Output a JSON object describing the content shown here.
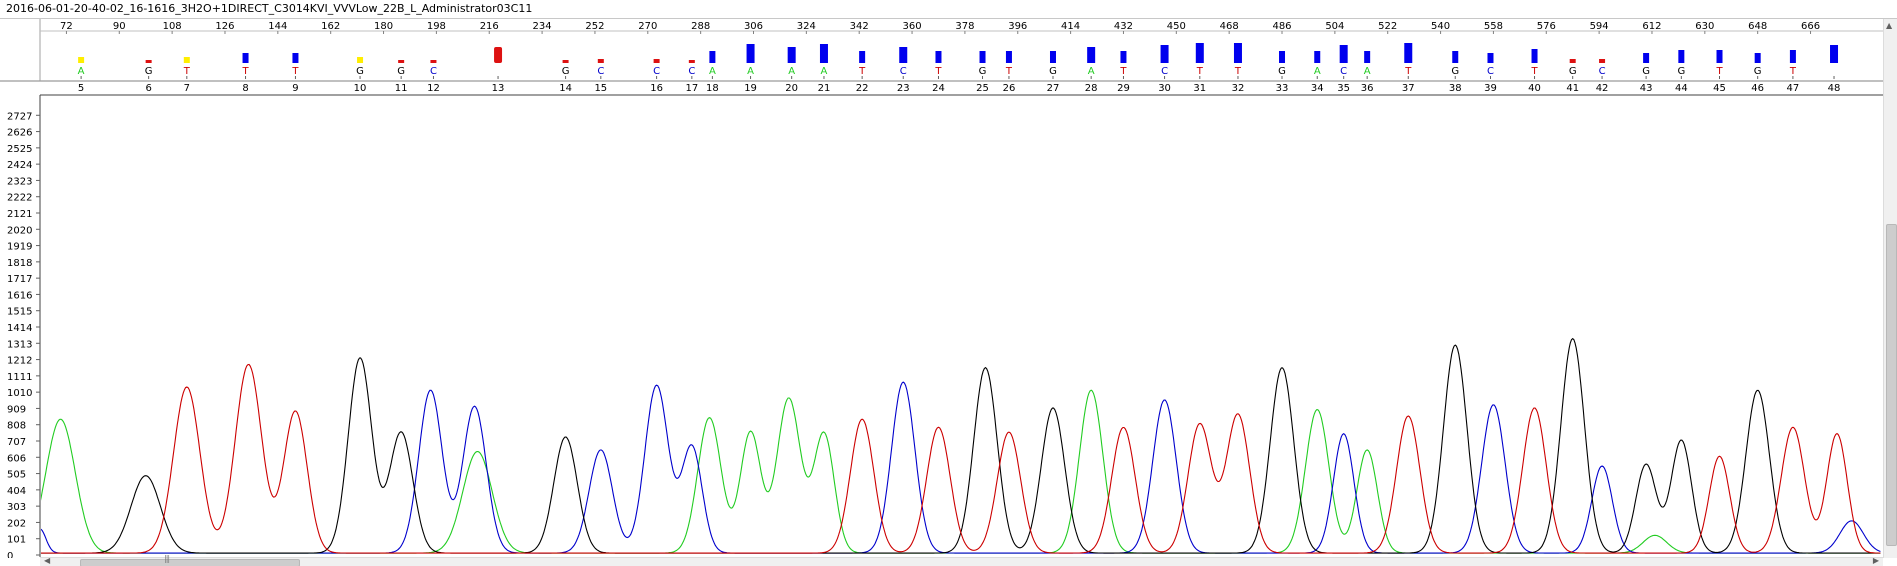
{
  "window": {
    "title": "2016-06-01-20-40-02_16-1616_3H2O+1DIRECT_C3014KVI_VVVLow_22B_L_Administrator03C11"
  },
  "chart_data": {
    "type": "line",
    "title": "",
    "xlabel": "",
    "ylabel": "",
    "x_ticks": [
      72,
      90,
      108,
      126,
      144,
      162,
      180,
      198,
      216,
      234,
      252,
      270,
      288,
      306,
      324,
      342,
      360,
      378,
      396,
      414,
      432,
      450,
      468,
      486,
      504,
      522,
      540,
      558,
      576,
      594,
      612,
      630,
      648,
      666
    ],
    "y_ticks": [
      0,
      101,
      202,
      303,
      404,
      505,
      606,
      707,
      808,
      909,
      1010,
      1111,
      1212,
      1313,
      1414,
      1515,
      1616,
      1717,
      1818,
      1919,
      2020,
      2121,
      2222,
      2323,
      2424,
      2525,
      2626,
      2727
    ],
    "ylim": [
      0,
      2828
    ],
    "xlim": [
      63,
      690
    ],
    "colors": {
      "A": "#22cc22",
      "C": "#0000cc",
      "G": "#000000",
      "T": "#cc0000"
    },
    "qv_colors": {
      "low": "#ffee00",
      "mid": "#dd1111",
      "high": "#0000ee"
    },
    "base_calls": [
      {
        "x": 77,
        "base": "A",
        "num": "5",
        "qv": "low",
        "q": 6
      },
      {
        "x": 100,
        "base": "G",
        "num": "6",
        "qv": "mid",
        "q": 3
      },
      {
        "x": 113,
        "base": "T",
        "num": "7",
        "qv": "low",
        "q": 6
      },
      {
        "x": 133,
        "base": "T",
        "num": "8",
        "qv": "high",
        "q": 10
      },
      {
        "x": 150,
        "base": "T",
        "num": "9",
        "qv": "high",
        "q": 10
      },
      {
        "x": 172,
        "base": "G",
        "num": "10",
        "qv": "low",
        "q": 6
      },
      {
        "x": 186,
        "base": "G",
        "num": "11",
        "qv": "mid",
        "q": 3
      },
      {
        "x": 197,
        "base": "C",
        "num": "12",
        "qv": "mid",
        "q": 3
      },
      {
        "x": 219,
        "base": "",
        "num": "13",
        "qv": "mid",
        "q": 16
      },
      {
        "x": 242,
        "base": "G",
        "num": "14",
        "qv": "mid",
        "q": 3
      },
      {
        "x": 254,
        "base": "C",
        "num": "15",
        "qv": "mid",
        "q": 4
      },
      {
        "x": 273,
        "base": "C",
        "num": "16",
        "qv": "mid",
        "q": 4
      },
      {
        "x": 285,
        "base": "C",
        "num": "17",
        "qv": "mid",
        "q": 3
      },
      {
        "x": 292,
        "base": "A",
        "num": "18",
        "qv": "high",
        "q": 12
      },
      {
        "x": 305,
        "base": "A",
        "num": "19",
        "qv": "high",
        "q": 19
      },
      {
        "x": 319,
        "base": "A",
        "num": "20",
        "qv": "high",
        "q": 16
      },
      {
        "x": 330,
        "base": "A",
        "num": "21",
        "qv": "high",
        "q": 19
      },
      {
        "x": 343,
        "base": "T",
        "num": "22",
        "qv": "high",
        "q": 12
      },
      {
        "x": 357,
        "base": "C",
        "num": "23",
        "qv": "high",
        "q": 16
      },
      {
        "x": 369,
        "base": "T",
        "num": "24",
        "qv": "high",
        "q": 12
      },
      {
        "x": 384,
        "base": "G",
        "num": "25",
        "qv": "high",
        "q": 12
      },
      {
        "x": 393,
        "base": "T",
        "num": "26",
        "qv": "high",
        "q": 12
      },
      {
        "x": 408,
        "base": "G",
        "num": "27",
        "qv": "high",
        "q": 12
      },
      {
        "x": 421,
        "base": "A",
        "num": "28",
        "qv": "high",
        "q": 16
      },
      {
        "x": 432,
        "base": "T",
        "num": "29",
        "qv": "high",
        "q": 12
      },
      {
        "x": 446,
        "base": "C",
        "num": "30",
        "qv": "high",
        "q": 18
      },
      {
        "x": 458,
        "base": "T",
        "num": "31",
        "qv": "high",
        "q": 20
      },
      {
        "x": 471,
        "base": "T",
        "num": "32",
        "qv": "high",
        "q": 20
      },
      {
        "x": 486,
        "base": "G",
        "num": "33",
        "qv": "high",
        "q": 12
      },
      {
        "x": 498,
        "base": "A",
        "num": "34",
        "qv": "high",
        "q": 12
      },
      {
        "x": 507,
        "base": "C",
        "num": "35",
        "qv": "high",
        "q": 18
      },
      {
        "x": 515,
        "base": "A",
        "num": "36",
        "qv": "high",
        "q": 12
      },
      {
        "x": 529,
        "base": "T",
        "num": "37",
        "qv": "high",
        "q": 20
      },
      {
        "x": 545,
        "base": "G",
        "num": "38",
        "qv": "high",
        "q": 12
      },
      {
        "x": 557,
        "base": "C",
        "num": "39",
        "qv": "high",
        "q": 10
      },
      {
        "x": 572,
        "base": "T",
        "num": "40",
        "qv": "high",
        "q": 14
      },
      {
        "x": 585,
        "base": "G",
        "num": "41",
        "qv": "mid",
        "q": 4
      },
      {
        "x": 595,
        "base": "C",
        "num": "42",
        "qv": "mid",
        "q": 4
      },
      {
        "x": 610,
        "base": "G",
        "num": "43",
        "qv": "high",
        "q": 10
      },
      {
        "x": 622,
        "base": "G",
        "num": "44",
        "qv": "high",
        "q": 13
      },
      {
        "x": 635,
        "base": "T",
        "num": "45",
        "qv": "high",
        "q": 13
      },
      {
        "x": 648,
        "base": "G",
        "num": "46",
        "qv": "high",
        "q": 10
      },
      {
        "x": 660,
        "base": "T",
        "num": "47",
        "qv": "high",
        "q": 13
      },
      {
        "x": 674,
        "base": "",
        "num": "48",
        "qv": "high",
        "q": 18
      }
    ],
    "series": [
      {
        "base": "A",
        "peaks": [
          [
            70,
            830,
            5
          ],
          [
            212,
            630,
            5
          ],
          [
            291,
            840,
            4
          ],
          [
            305,
            750,
            3.5
          ],
          [
            318,
            960,
            4
          ],
          [
            330,
            740,
            3.5
          ],
          [
            421,
            1010,
            4
          ],
          [
            498,
            890,
            4
          ],
          [
            515,
            640,
            3.5
          ],
          [
            613,
            110,
            4
          ]
        ]
      },
      {
        "base": "C",
        "peaks": [
          [
            63,
            150,
            2
          ],
          [
            196,
            1010,
            4
          ],
          [
            211,
            910,
            4
          ],
          [
            254,
            640,
            4
          ],
          [
            273,
            1040,
            4
          ],
          [
            285,
            660,
            3.5
          ],
          [
            357,
            1060,
            4
          ],
          [
            446,
            950,
            4
          ],
          [
            507,
            740,
            3.5
          ],
          [
            558,
            920,
            4
          ],
          [
            595,
            540,
            3.5
          ],
          [
            680,
            200,
            4
          ]
        ]
      },
      {
        "base": "G",
        "peaks": [
          [
            99,
            480,
            5
          ],
          [
            172,
            1210,
            4
          ],
          [
            186,
            750,
            4
          ],
          [
            242,
            720,
            4
          ],
          [
            385,
            1150,
            4
          ],
          [
            408,
            900,
            4
          ],
          [
            486,
            1150,
            4
          ],
          [
            545,
            1290,
            4
          ],
          [
            585,
            1330,
            4
          ],
          [
            610,
            550,
            3.5
          ],
          [
            622,
            700,
            3.5
          ],
          [
            648,
            1010,
            4
          ]
        ]
      },
      {
        "base": "T",
        "peaks": [
          [
            113,
            1030,
            4.5
          ],
          [
            134,
            1170,
            4.5
          ],
          [
            150,
            880,
            4
          ],
          [
            343,
            830,
            4
          ],
          [
            369,
            780,
            4
          ],
          [
            393,
            750,
            4
          ],
          [
            432,
            780,
            4
          ],
          [
            458,
            800,
            4
          ],
          [
            471,
            860,
            4
          ],
          [
            529,
            850,
            4
          ],
          [
            572,
            900,
            4
          ],
          [
            635,
            600,
            3.5
          ],
          [
            660,
            780,
            4
          ],
          [
            675,
            740,
            3.5
          ]
        ]
      }
    ]
  }
}
